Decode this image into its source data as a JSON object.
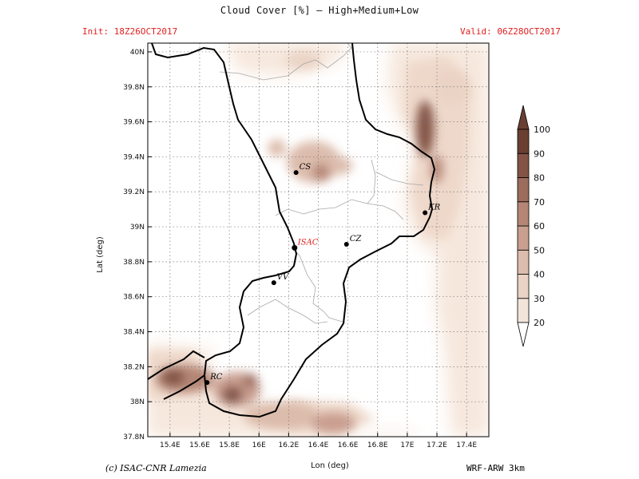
{
  "header": {
    "title": "Cloud Cover [%] — High+Medium+Low",
    "init": "Init: 18Z26OCT2017",
    "valid": "Valid: 06Z28OCT2017"
  },
  "footer": {
    "credit": "(c) ISAC-CNR Lamezia",
    "model": "WRF-ARW 3km"
  },
  "chart_data": {
    "type": "heatmap",
    "title": "Cloud Cover [%] — High+Medium+Low",
    "xlabel": "Lon (deg)",
    "ylabel": "Lat (deg)",
    "xlim": [
      15.25,
      17.55
    ],
    "ylim": [
      37.8,
      40.05
    ],
    "x_ticks": [
      {
        "value": 15.4,
        "label": "15.4E"
      },
      {
        "value": 15.6,
        "label": "15.6E"
      },
      {
        "value": 15.8,
        "label": "15.8E"
      },
      {
        "value": 16.0,
        "label": "16E"
      },
      {
        "value": 16.2,
        "label": "16.2E"
      },
      {
        "value": 16.4,
        "label": "16.4E"
      },
      {
        "value": 16.6,
        "label": "16.6E"
      },
      {
        "value": 16.8,
        "label": "16.8E"
      },
      {
        "value": 17.0,
        "label": "17E"
      },
      {
        "value": 17.2,
        "label": "17.2E"
      },
      {
        "value": 17.4,
        "label": "17.4E"
      }
    ],
    "y_ticks": [
      {
        "value": 37.8,
        "label": "37.8N"
      },
      {
        "value": 38.0,
        "label": "38N"
      },
      {
        "value": 38.2,
        "label": "38.2N"
      },
      {
        "value": 38.4,
        "label": "38.4N"
      },
      {
        "value": 38.6,
        "label": "38.6N"
      },
      {
        "value": 38.8,
        "label": "38.8N"
      },
      {
        "value": 39.0,
        "label": "39N"
      },
      {
        "value": 39.2,
        "label": "39.2N"
      },
      {
        "value": 39.4,
        "label": "39.4N"
      },
      {
        "value": 39.6,
        "label": "39.6N"
      },
      {
        "value": 39.8,
        "label": "39.8N"
      },
      {
        "value": 40.0,
        "label": "40N"
      }
    ],
    "grid": true,
    "colorbar": {
      "levels": [
        20,
        30,
        40,
        50,
        60,
        70,
        80,
        90,
        100
      ],
      "colors": [
        "#fcf6f0",
        "#f3e4d9",
        "#ead3c4",
        "#dcbcac",
        "#c99f90",
        "#b58676",
        "#9c6c5d",
        "#835446",
        "#6a3f32"
      ],
      "extend": "both"
    },
    "cities": [
      {
        "name": "CS",
        "lon": 16.25,
        "lat": 39.31,
        "highlight": false
      },
      {
        "name": "KR",
        "lon": 17.12,
        "lat": 39.08,
        "highlight": false
      },
      {
        "name": "ISAC",
        "lon": 16.24,
        "lat": 38.88,
        "highlight": true
      },
      {
        "name": "CZ",
        "lon": 16.59,
        "lat": 38.9,
        "highlight": false
      },
      {
        "name": "VV",
        "lon": 16.1,
        "lat": 38.68,
        "highlight": false
      },
      {
        "name": "RC",
        "lon": 15.65,
        "lat": 38.11,
        "highlight": false
      }
    ],
    "cloud_patches": [
      {
        "lon": 17.12,
        "lat": 39.56,
        "rlon": 0.06,
        "rlat": 0.16,
        "value": 80
      },
      {
        "lon": 17.2,
        "lat": 39.33,
        "rlon": 0.04,
        "rlat": 0.08,
        "value": 60
      },
      {
        "lon": 16.37,
        "lat": 39.37,
        "rlon": 0.18,
        "rlat": 0.12,
        "value": 40
      },
      {
        "lon": 16.42,
        "lat": 39.31,
        "rlon": 0.06,
        "rlat": 0.05,
        "value": 60
      },
      {
        "lon": 16.55,
        "lat": 39.35,
        "rlon": 0.08,
        "rlat": 0.05,
        "value": 40
      },
      {
        "lon": 16.12,
        "lat": 39.45,
        "rlon": 0.06,
        "rlat": 0.05,
        "value": 40
      },
      {
        "lon": 15.5,
        "lat": 38.13,
        "rlon": 0.2,
        "rlat": 0.08,
        "value": 60
      },
      {
        "lon": 15.42,
        "lat": 38.14,
        "rlon": 0.08,
        "rlat": 0.05,
        "value": 80
      },
      {
        "lon": 15.85,
        "lat": 38.07,
        "rlon": 0.16,
        "rlat": 0.1,
        "value": 50
      },
      {
        "lon": 15.82,
        "lat": 38.04,
        "rlon": 0.07,
        "rlat": 0.05,
        "value": 80
      },
      {
        "lon": 15.94,
        "lat": 38.12,
        "rlon": 0.05,
        "rlat": 0.04,
        "value": 70
      },
      {
        "lon": 16.15,
        "lat": 37.92,
        "rlon": 0.25,
        "rlat": 0.08,
        "value": 40
      },
      {
        "lon": 16.5,
        "lat": 37.88,
        "rlon": 0.15,
        "rlat": 0.06,
        "value": 50
      },
      {
        "lon": 17.3,
        "lat": 39.8,
        "rlon": 0.12,
        "rlat": 0.1,
        "value": 30
      },
      {
        "lon": 16.3,
        "lat": 39.95,
        "rlon": 0.12,
        "rlat": 0.05,
        "value": 30
      }
    ]
  }
}
